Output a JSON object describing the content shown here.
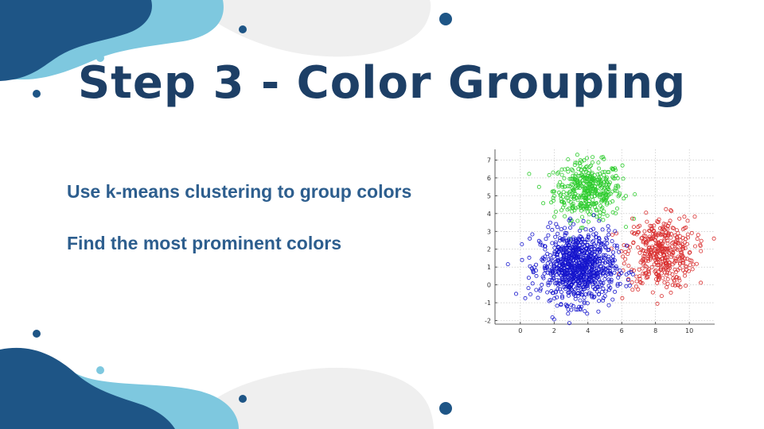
{
  "slide": {
    "title": "Step 3 - Color Grouping",
    "bullets": [
      "Use k-means clustering to group colors",
      "Find the most prominent colors"
    ]
  },
  "colors": {
    "title": "#1d3f66",
    "bullet_text": "#2d5e8e",
    "blob_dark": "#1e5586",
    "blob_light": "#7ec8df",
    "blob_gray": "#efefef",
    "dot": "#1e5586"
  },
  "chart_data": {
    "type": "scatter",
    "title": "",
    "xlabel": "",
    "ylabel": "",
    "xlim": [
      -1.5,
      11.5
    ],
    "ylim": [
      -2.2,
      7.6
    ],
    "xticks": [
      0,
      2,
      4,
      6,
      8,
      10
    ],
    "yticks": [
      -2,
      -1,
      0,
      1,
      2,
      3,
      4,
      5,
      6,
      7
    ],
    "grid": true,
    "legend": "none",
    "marker": "open-circle",
    "series": [
      {
        "color": "#2ecc2e",
        "cluster_center": [
          4.0,
          5.3
        ],
        "spread": [
          1.0,
          0.8
        ],
        "count": 420
      },
      {
        "color": "#d93030",
        "cluster_center": [
          8.3,
          1.8
        ],
        "spread": [
          1.0,
          1.0
        ],
        "count": 420
      },
      {
        "color": "#1515cc",
        "cluster_center": [
          3.4,
          1.0
        ],
        "spread": [
          1.1,
          1.0
        ],
        "count": 900
      }
    ]
  }
}
